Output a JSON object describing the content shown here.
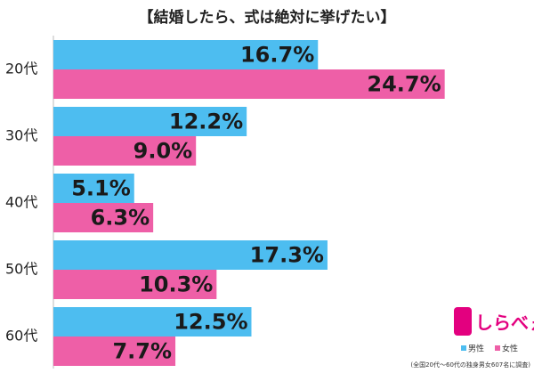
{
  "chart_data": {
    "type": "bar",
    "orientation": "horizontal",
    "title": "【結婚したら、式は絶対に挙げたい】",
    "categories": [
      "20代",
      "30代",
      "40代",
      "50代",
      "60代"
    ],
    "series": [
      {
        "name": "男性",
        "color": "#4dbdf0",
        "values": [
          16.7,
          12.2,
          5.1,
          17.3,
          12.5
        ],
        "value_labels": [
          "16.7%",
          "12.2%",
          "5.1%",
          "17.3%",
          "12.5%"
        ]
      },
      {
        "name": "女性",
        "color": "#ee5fa7",
        "values": [
          24.7,
          9.0,
          6.3,
          10.3,
          7.7
        ],
        "value_labels": [
          "24.7%",
          "9.0%",
          "6.3%",
          "10.3%",
          "7.7%"
        ]
      }
    ],
    "logo": "しらべぇ",
    "note": "(全国20代～60代の独身男女607名に調査)"
  }
}
